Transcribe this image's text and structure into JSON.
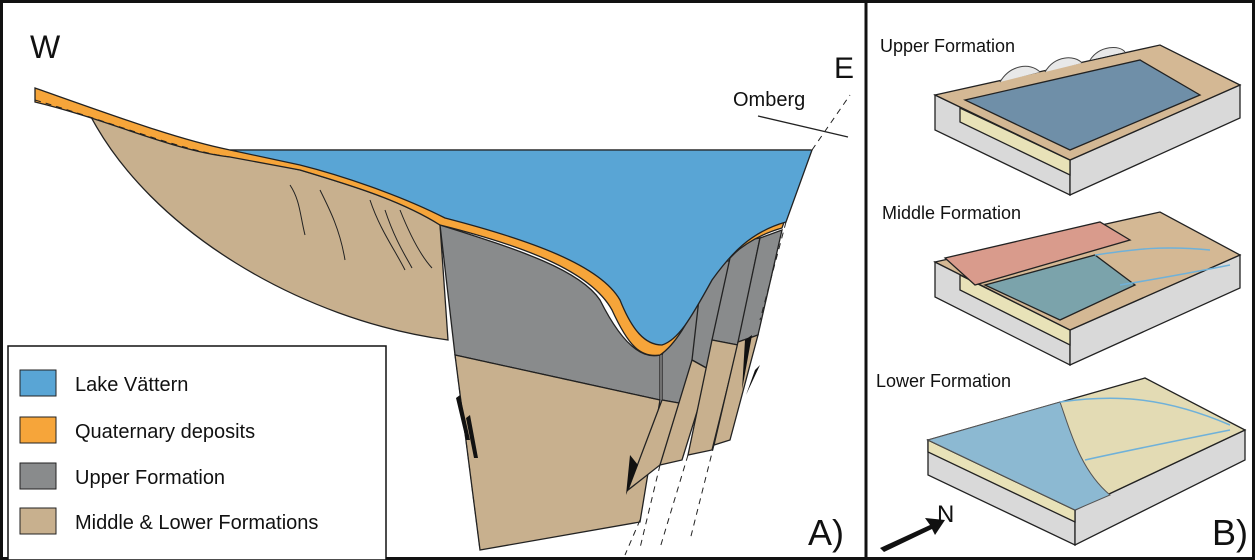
{
  "panel_a": {
    "label": "A)",
    "west": "W",
    "east": "E",
    "place": "Omberg",
    "legend": [
      "Lake Vättern",
      "Quaternary deposits",
      "Upper Formation",
      "Middle & Lower Formations"
    ]
  },
  "panel_b": {
    "label": "B)",
    "north": "N",
    "blocks": [
      "Upper Formation",
      "Middle Formation",
      "Lower Formation"
    ]
  }
}
